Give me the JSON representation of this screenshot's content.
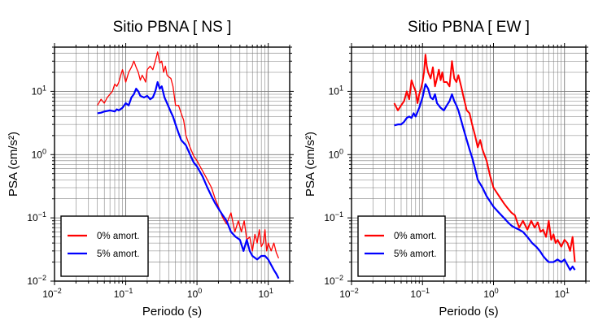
{
  "chart_data": [
    {
      "type": "line",
      "title": "Sitio PBNA [ NS ]",
      "xlabel": "Periodo (s)",
      "ylabel": "PSA (cm/s²)",
      "xscale": "log",
      "yscale": "log",
      "xlim": [
        0.01,
        20
      ],
      "ylim": [
        0.01,
        50
      ],
      "x_ticks": [
        {
          "value": 0.01,
          "base": "10",
          "exp": "−2"
        },
        {
          "value": 0.1,
          "base": "10",
          "exp": "−1"
        },
        {
          "value": 1,
          "base": "10",
          "exp": "0"
        },
        {
          "value": 10,
          "base": "10",
          "exp": "1"
        }
      ],
      "y_ticks": [
        {
          "value": 0.01,
          "base": "10",
          "exp": "−2"
        },
        {
          "value": 0.1,
          "base": "10",
          "exp": "−1"
        },
        {
          "value": 1,
          "label": "10",
          "sub": "0"
        },
        {
          "value": 10,
          "label": "10",
          "sub": "1"
        }
      ],
      "grid": true,
      "legend_position": "bottom-left",
      "series": [
        {
          "name": "0% amort.",
          "color": "#ff0000",
          "x": [
            0.04,
            0.045,
            0.05,
            0.055,
            0.06,
            0.065,
            0.07,
            0.075,
            0.08,
            0.085,
            0.09,
            0.1,
            0.11,
            0.12,
            0.13,
            0.14,
            0.15,
            0.16,
            0.17,
            0.18,
            0.19,
            0.2,
            0.22,
            0.24,
            0.26,
            0.28,
            0.3,
            0.32,
            0.34,
            0.36,
            0.38,
            0.4,
            0.43,
            0.46,
            0.5,
            0.55,
            0.6,
            0.65,
            0.7,
            0.8,
            0.9,
            1.0,
            1.2,
            1.4,
            1.6,
            1.8,
            2.0,
            2.3,
            2.6,
            3.0,
            3.4,
            3.8,
            4.2,
            4.6,
            5.0,
            5.5,
            6.0,
            6.5,
            7.0,
            7.5,
            8.0,
            8.5,
            9.0,
            9.5,
            10.0,
            11.0,
            12.0,
            13.0,
            14.0
          ],
          "y": [
            6.0,
            7.5,
            6.5,
            8.0,
            9.0,
            10.0,
            13.0,
            12.0,
            14.0,
            18.0,
            22.0,
            14.0,
            20.0,
            24.0,
            30.0,
            24.0,
            20.0,
            15.0,
            18.0,
            16.0,
            14.0,
            22.0,
            25.0,
            22.0,
            30.0,
            42.0,
            28.0,
            30.0,
            20.0,
            25.0,
            18.0,
            17.0,
            16.0,
            12.0,
            6.0,
            6.0,
            4.5,
            3.5,
            2.0,
            1.3,
            0.95,
            0.8,
            0.55,
            0.4,
            0.3,
            0.2,
            0.15,
            0.1,
            0.08,
            0.12,
            0.06,
            0.09,
            0.06,
            0.09,
            0.045,
            0.05,
            0.03,
            0.055,
            0.04,
            0.065,
            0.035,
            0.04,
            0.065,
            0.03,
            0.04,
            0.03,
            0.04,
            0.028,
            0.023
          ]
        },
        {
          "name": "5% amort.",
          "color": "#0000ff",
          "x": [
            0.04,
            0.045,
            0.05,
            0.06,
            0.07,
            0.075,
            0.08,
            0.09,
            0.1,
            0.11,
            0.12,
            0.13,
            0.14,
            0.15,
            0.16,
            0.18,
            0.2,
            0.22,
            0.24,
            0.26,
            0.28,
            0.3,
            0.32,
            0.35,
            0.38,
            0.42,
            0.46,
            0.5,
            0.55,
            0.6,
            0.7,
            0.8,
            0.9,
            1.0,
            1.2,
            1.4,
            1.6,
            1.8,
            2.0,
            2.3,
            2.6,
            3.0,
            3.5,
            4.0,
            4.5,
            5.0,
            5.5,
            6.0,
            7.0,
            8.0,
            9.0,
            10.0,
            11.0,
            12.0,
            13.0,
            14.0
          ],
          "y": [
            4.5,
            4.6,
            4.8,
            5.0,
            4.8,
            5.2,
            5.0,
            5.5,
            6.5,
            6.0,
            8.0,
            9.0,
            11.0,
            10.0,
            8.5,
            8.0,
            8.5,
            7.5,
            8.0,
            10.0,
            14.0,
            11.0,
            12.0,
            8.0,
            6.5,
            5.0,
            4.0,
            3.0,
            2.2,
            1.7,
            1.4,
            1.0,
            0.75,
            0.65,
            0.45,
            0.3,
            0.22,
            0.17,
            0.14,
            0.11,
            0.09,
            0.06,
            0.05,
            0.045,
            0.03,
            0.045,
            0.03,
            0.025,
            0.022,
            0.025,
            0.025,
            0.022,
            0.018,
            0.015,
            0.013,
            0.011
          ]
        }
      ]
    },
    {
      "type": "line",
      "title": "Sitio PBNA [ EW ]",
      "xlabel": "Periodo (s)",
      "ylabel": "PSA (cm/s²)",
      "xscale": "log",
      "yscale": "log",
      "xlim": [
        0.01,
        20
      ],
      "ylim": [
        0.01,
        50
      ],
      "x_ticks": [
        {
          "value": 0.01,
          "base": "10",
          "exp": "−2"
        },
        {
          "value": 0.1,
          "base": "10",
          "exp": "−1"
        },
        {
          "value": 1,
          "base": "10",
          "exp": "0"
        },
        {
          "value": 10,
          "base": "10",
          "exp": "1"
        }
      ],
      "y_ticks": [
        {
          "value": 0.01,
          "base": "10",
          "exp": "−2"
        },
        {
          "value": 0.1,
          "base": "10",
          "exp": "−1"
        },
        {
          "value": 1,
          "label": "10",
          "sub": "0"
        },
        {
          "value": 10,
          "label": "10",
          "sub": "1"
        }
      ],
      "grid": true,
      "legend_position": "bottom-left",
      "series": [
        {
          "name": "0% amort.",
          "color": "#ff0000",
          "x": [
            0.04,
            0.045,
            0.05,
            0.055,
            0.06,
            0.065,
            0.07,
            0.075,
            0.08,
            0.085,
            0.09,
            0.095,
            0.1,
            0.105,
            0.11,
            0.115,
            0.12,
            0.13,
            0.14,
            0.15,
            0.16,
            0.17,
            0.18,
            0.19,
            0.2,
            0.22,
            0.24,
            0.26,
            0.28,
            0.3,
            0.32,
            0.35,
            0.38,
            0.42,
            0.46,
            0.5,
            0.55,
            0.6,
            0.65,
            0.7,
            0.8,
            0.9,
            1.0,
            1.2,
            1.4,
            1.6,
            1.8,
            2.0,
            2.3,
            2.6,
            3.0,
            3.4,
            3.8,
            4.2,
            4.6,
            5.0,
            5.5,
            6.0,
            6.5,
            7.0,
            7.5,
            8.0,
            9.0,
            10.0,
            11.0,
            12.0,
            13.0,
            14.0
          ],
          "y": [
            6.5,
            5.0,
            6.0,
            7.0,
            10.0,
            7.5,
            15.0,
            12.0,
            10.0,
            6.5,
            9.0,
            11.0,
            14.0,
            20.0,
            38.0,
            25.0,
            20.0,
            16.0,
            24.0,
            12.0,
            16.0,
            22.0,
            15.0,
            20.0,
            14.0,
            14.0,
            12.0,
            30.0,
            16.0,
            14.0,
            18.0,
            12.0,
            8.0,
            5.0,
            4.5,
            3.0,
            2.0,
            1.3,
            1.7,
            1.2,
            0.8,
            0.45,
            0.3,
            0.22,
            0.17,
            0.14,
            0.12,
            0.11,
            0.07,
            0.09,
            0.065,
            0.09,
            0.07,
            0.085,
            0.06,
            0.065,
            0.05,
            0.09,
            0.045,
            0.055,
            0.04,
            0.045,
            0.035,
            0.045,
            0.04,
            0.03,
            0.05,
            0.02
          ]
        },
        {
          "name": "5% amort.",
          "color": "#0000ff",
          "x": [
            0.04,
            0.045,
            0.05,
            0.055,
            0.06,
            0.065,
            0.07,
            0.075,
            0.08,
            0.09,
            0.1,
            0.11,
            0.12,
            0.13,
            0.14,
            0.15,
            0.16,
            0.18,
            0.2,
            0.22,
            0.24,
            0.26,
            0.28,
            0.3,
            0.32,
            0.35,
            0.38,
            0.42,
            0.46,
            0.5,
            0.55,
            0.6,
            0.7,
            0.8,
            0.9,
            1.0,
            1.2,
            1.4,
            1.6,
            1.8,
            2.0,
            2.3,
            2.6,
            3.0,
            3.5,
            4.0,
            4.5,
            5.0,
            5.5,
            6.0,
            7.0,
            8.0,
            9.0,
            10.0,
            11.0,
            12.0,
            13.0,
            14.0
          ],
          "y": [
            2.9,
            3.0,
            3.0,
            3.3,
            3.8,
            4.0,
            3.8,
            4.5,
            4.0,
            5.5,
            8.0,
            13.0,
            11.0,
            8.0,
            7.5,
            9.0,
            6.5,
            5.5,
            5.0,
            6.0,
            7.0,
            9.0,
            7.0,
            6.0,
            5.0,
            3.5,
            2.5,
            1.7,
            1.2,
            0.9,
            0.6,
            0.4,
            0.3,
            0.22,
            0.18,
            0.15,
            0.12,
            0.1,
            0.085,
            0.075,
            0.07,
            0.065,
            0.06,
            0.05,
            0.04,
            0.035,
            0.03,
            0.025,
            0.022,
            0.02,
            0.02,
            0.022,
            0.02,
            0.022,
            0.018,
            0.015,
            0.017,
            0.015
          ]
        }
      ]
    }
  ]
}
